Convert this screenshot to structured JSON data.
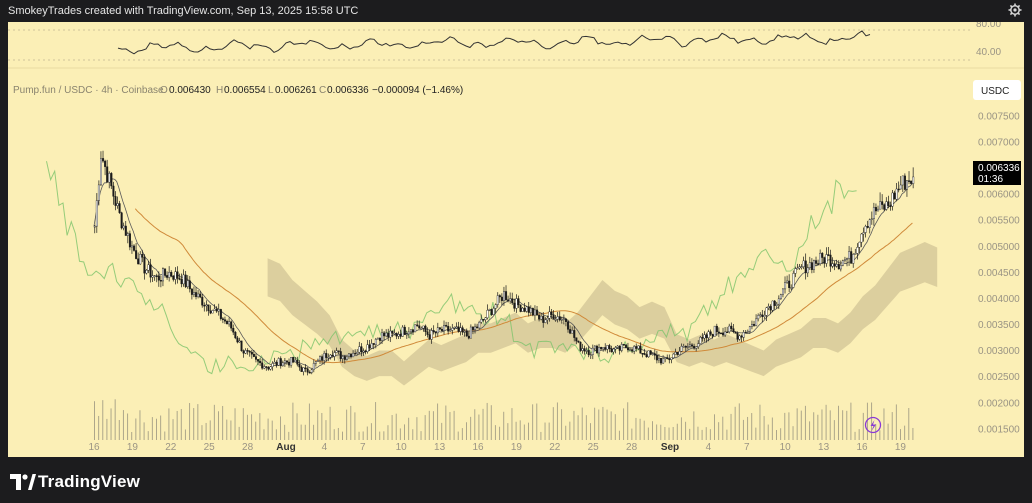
{
  "header": {
    "attribution": "SmokeyTrades created with TradingView.com, Sep 13, 2025 15:58 UTC",
    "settings_icon": "gear-icon"
  },
  "footer": {
    "brand": "TradingView",
    "logo_icon": "tradingview-logo-icon"
  },
  "colors": {
    "panel_bg": "#fbefb6",
    "candle": "#1a1a1a",
    "volume": "#8c8878",
    "cloud": "#c2b48a",
    "lagging_span": "#7cc36a",
    "sma": "#d08a3a",
    "ema": "#4a4a4a",
    "rsi": "#333333",
    "price_tag_bg": "#000000"
  },
  "chart_data": {
    "type": "candlestick",
    "symbol_line": {
      "symbol": "Pump.fun / USDC · 4h · Coinbase",
      "o_label": "O",
      "o": "0.006430",
      "h_label": "H",
      "h": "0.006554",
      "l_label": "L",
      "l": "0.006261",
      "c_label": "C",
      "c": "0.006336",
      "change": "−0.000094 (−1.46%)"
    },
    "currency_button": "USDC",
    "last_price": "0.006336",
    "countdown": "01:36",
    "lightning_icon": "lightning-icon",
    "price_ticks": [
      "0.007500",
      "0.007000",
      "0.006500",
      "0.006000",
      "0.005500",
      "0.005000",
      "0.004500",
      "0.004000",
      "0.003500",
      "0.003000",
      "0.002500",
      "0.002000",
      "0.001500"
    ],
    "ylim": [
      0.0012,
      0.0077
    ],
    "x_ticks": [
      "16",
      "19",
      "22",
      "25",
      "28",
      "Aug",
      "4",
      "7",
      "10",
      "13",
      "16",
      "19",
      "22",
      "25",
      "28",
      "Sep",
      "4",
      "7",
      "10",
      "13",
      "16",
      "19"
    ],
    "bold_x_ticks": [
      "Aug",
      "Sep"
    ],
    "close_series": [
      {
        "day": 0,
        "v": 0.0054
      },
      {
        "day": 0.5,
        "v": 0.0068
      },
      {
        "day": 1,
        "v": 0.0064
      },
      {
        "day": 2,
        "v": 0.0056
      },
      {
        "day": 3,
        "v": 0.005
      },
      {
        "day": 4,
        "v": 0.0046
      },
      {
        "day": 5,
        "v": 0.0044
      },
      {
        "day": 6,
        "v": 0.0045
      },
      {
        "day": 7,
        "v": 0.0044
      },
      {
        "day": 8,
        "v": 0.0041
      },
      {
        "day": 9,
        "v": 0.0039
      },
      {
        "day": 10,
        "v": 0.0037
      },
      {
        "day": 11,
        "v": 0.00345
      },
      {
        "day": 12,
        "v": 0.003
      },
      {
        "day": 13,
        "v": 0.0028
      },
      {
        "day": 14,
        "v": 0.0027
      },
      {
        "day": 15,
        "v": 0.0028
      },
      {
        "day": 16,
        "v": 0.0028
      },
      {
        "day": 17,
        "v": 0.0026
      },
      {
        "day": 18,
        "v": 0.0028
      },
      {
        "day": 19,
        "v": 0.003
      },
      {
        "day": 20,
        "v": 0.0029
      },
      {
        "day": 21,
        "v": 0.003
      },
      {
        "day": 22,
        "v": 0.0031
      },
      {
        "day": 23,
        "v": 0.0033
      },
      {
        "day": 24,
        "v": 0.0033
      },
      {
        "day": 25,
        "v": 0.0034
      },
      {
        "day": 26,
        "v": 0.0035
      },
      {
        "day": 27,
        "v": 0.0033
      },
      {
        "day": 28,
        "v": 0.0034
      },
      {
        "day": 29,
        "v": 0.0034
      },
      {
        "day": 30,
        "v": 0.0033
      },
      {
        "day": 31,
        "v": 0.0035
      },
      {
        "day": 32,
        "v": 0.0038
      },
      {
        "day": 33,
        "v": 0.0041
      },
      {
        "day": 34,
        "v": 0.0039
      },
      {
        "day": 35,
        "v": 0.0038
      },
      {
        "day": 36,
        "v": 0.0036
      },
      {
        "day": 37,
        "v": 0.0037
      },
      {
        "day": 38,
        "v": 0.0036
      },
      {
        "day": 39,
        "v": 0.0031
      },
      {
        "day": 40,
        "v": 0.003
      },
      {
        "day": 41,
        "v": 0.0031
      },
      {
        "day": 42,
        "v": 0.003
      },
      {
        "day": 43,
        "v": 0.0031
      },
      {
        "day": 44,
        "v": 0.003
      },
      {
        "day": 45,
        "v": 0.0029
      },
      {
        "day": 46,
        "v": 0.0028
      },
      {
        "day": 47,
        "v": 0.003
      },
      {
        "day": 48,
        "v": 0.0031
      },
      {
        "day": 49,
        "v": 0.0032
      },
      {
        "day": 50,
        "v": 0.0034
      },
      {
        "day": 51,
        "v": 0.0034
      },
      {
        "day": 52,
        "v": 0.0033
      },
      {
        "day": 53,
        "v": 0.0035
      },
      {
        "day": 54,
        "v": 0.0038
      },
      {
        "day": 55,
        "v": 0.004
      },
      {
        "day": 56,
        "v": 0.0043
      },
      {
        "day": 57,
        "v": 0.0046
      },
      {
        "day": 58,
        "v": 0.0047
      },
      {
        "day": 59,
        "v": 0.0048
      },
      {
        "day": 60,
        "v": 0.0047
      },
      {
        "day": 61,
        "v": 0.0048
      },
      {
        "day": 62,
        "v": 0.0054
      },
      {
        "day": 63,
        "v": 0.0057
      },
      {
        "day": 64,
        "v": 0.0058
      },
      {
        "day": 65,
        "v": 0.0062
      },
      {
        "day": 66,
        "v": 0.00634
      }
    ],
    "rsi": {
      "ticks": [
        "80.00",
        "40.00"
      ],
      "ylim": [
        30,
        90
      ]
    }
  }
}
